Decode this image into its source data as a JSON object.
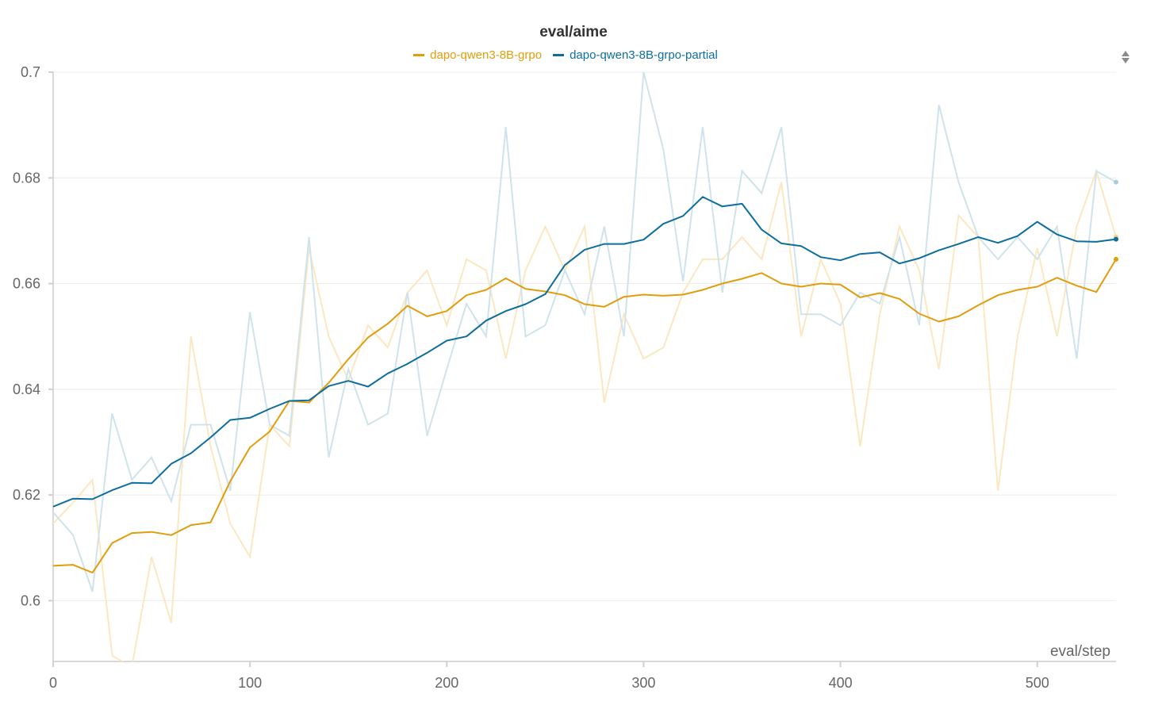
{
  "chart_data": {
    "type": "line",
    "title": "eval/aime",
    "xlabel": "eval/step",
    "ylabel": "",
    "xlim": [
      0,
      540
    ],
    "ylim": [
      0.5885,
      0.7
    ],
    "x_ticks": [
      0,
      100,
      200,
      300,
      400,
      500
    ],
    "y_ticks": [
      0.6,
      0.62,
      0.64,
      0.66,
      0.68,
      0.7
    ],
    "x_tick_labels": [
      "0",
      "100",
      "200",
      "300",
      "400",
      "500"
    ],
    "y_tick_labels": [
      "0.6",
      "0.62",
      "0.64",
      "0.66",
      "0.68",
      "0.7"
    ],
    "grid": true,
    "legend_position": "top-center",
    "x": [
      0,
      10,
      20,
      30,
      40,
      50,
      60,
      70,
      80,
      90,
      100,
      110,
      120,
      130,
      140,
      150,
      160,
      170,
      180,
      190,
      200,
      210,
      220,
      230,
      240,
      250,
      260,
      270,
      280,
      290,
      300,
      310,
      320,
      330,
      340,
      350,
      360,
      370,
      380,
      390,
      400,
      410,
      420,
      430,
      440,
      450,
      460,
      470,
      480,
      490,
      500,
      510,
      520,
      530,
      540
    ],
    "series": [
      {
        "name": "dapo-qwen3-8B-grpo",
        "color": "#e19d0b",
        "raw_color": "#fbe7c0",
        "raw": [
          0.6146,
          0.6185,
          0.6229,
          0.5896,
          0.5875,
          0.6083,
          0.5958,
          0.65,
          0.6292,
          0.6146,
          0.6083,
          0.6333,
          0.6292,
          0.6667,
          0.65,
          0.6417,
          0.6521,
          0.6479,
          0.6583,
          0.6625,
          0.6521,
          0.6646,
          0.6625,
          0.6458,
          0.6625,
          0.6708,
          0.6625,
          0.6708,
          0.6375,
          0.6542,
          0.6458,
          0.6479,
          0.6583,
          0.6646,
          0.6646,
          0.6688,
          0.6646,
          0.6792,
          0.65,
          0.6646,
          0.6562,
          0.6292,
          0.6542,
          0.6708,
          0.6625,
          0.6438,
          0.6729,
          0.6688,
          0.6208,
          0.65,
          0.6667,
          0.65,
          0.6708,
          0.6813,
          0.6688
        ],
        "smoothed": [
          0.6066,
          0.6068,
          0.6053,
          0.6109,
          0.6128,
          0.613,
          0.6124,
          0.6143,
          0.6148,
          0.6226,
          0.629,
          0.632,
          0.6378,
          0.6375,
          0.6412,
          0.6457,
          0.6498,
          0.6524,
          0.6558,
          0.6538,
          0.6548,
          0.6578,
          0.6588,
          0.661,
          0.659,
          0.6585,
          0.6578,
          0.6561,
          0.6556,
          0.6575,
          0.6579,
          0.6577,
          0.6579,
          0.6588,
          0.66,
          0.6609,
          0.662,
          0.66,
          0.6594,
          0.66,
          0.6598,
          0.6574,
          0.6582,
          0.6571,
          0.6543,
          0.6528,
          0.6538,
          0.6559,
          0.6578,
          0.6588,
          0.6594,
          0.6611,
          0.6596,
          0.6584,
          0.6646
        ]
      },
      {
        "name": "dapo-qwen3-8B-grpo-partial",
        "color": "#0d6e9e",
        "raw_color": "#cfe3ec",
        "raw": [
          0.6167,
          0.6125,
          0.6017,
          0.6354,
          0.6229,
          0.6271,
          0.6188,
          0.6333,
          0.6333,
          0.6208,
          0.6546,
          0.6333,
          0.6312,
          0.6688,
          0.6271,
          0.6438,
          0.6333,
          0.6354,
          0.6583,
          0.6312,
          0.6438,
          0.6562,
          0.65,
          0.6896,
          0.65,
          0.6521,
          0.6625,
          0.6542,
          0.6708,
          0.65,
          0.7,
          0.6854,
          0.6604,
          0.6896,
          0.6583,
          0.6813,
          0.6771,
          0.6896,
          0.6542,
          0.6542,
          0.6521,
          0.6583,
          0.6562,
          0.6688,
          0.6521,
          0.6938,
          0.6792,
          0.6688,
          0.6646,
          0.6688,
          0.6646,
          0.6708,
          0.6458,
          0.6813,
          0.6792
        ],
        "smoothed": [
          0.6178,
          0.6193,
          0.6192,
          0.6209,
          0.6223,
          0.6222,
          0.6259,
          0.6279,
          0.6309,
          0.6342,
          0.6346,
          0.6363,
          0.6378,
          0.6379,
          0.6406,
          0.6416,
          0.6405,
          0.643,
          0.6448,
          0.6469,
          0.6492,
          0.65,
          0.653,
          0.6548,
          0.6561,
          0.658,
          0.6635,
          0.6664,
          0.6675,
          0.6675,
          0.6683,
          0.6713,
          0.6728,
          0.6764,
          0.6746,
          0.6751,
          0.6702,
          0.6676,
          0.6671,
          0.665,
          0.6644,
          0.6656,
          0.6659,
          0.6638,
          0.6648,
          0.6663,
          0.6675,
          0.6688,
          0.6677,
          0.669,
          0.6717,
          0.6693,
          0.668,
          0.6679,
          0.6684
        ]
      }
    ]
  }
}
